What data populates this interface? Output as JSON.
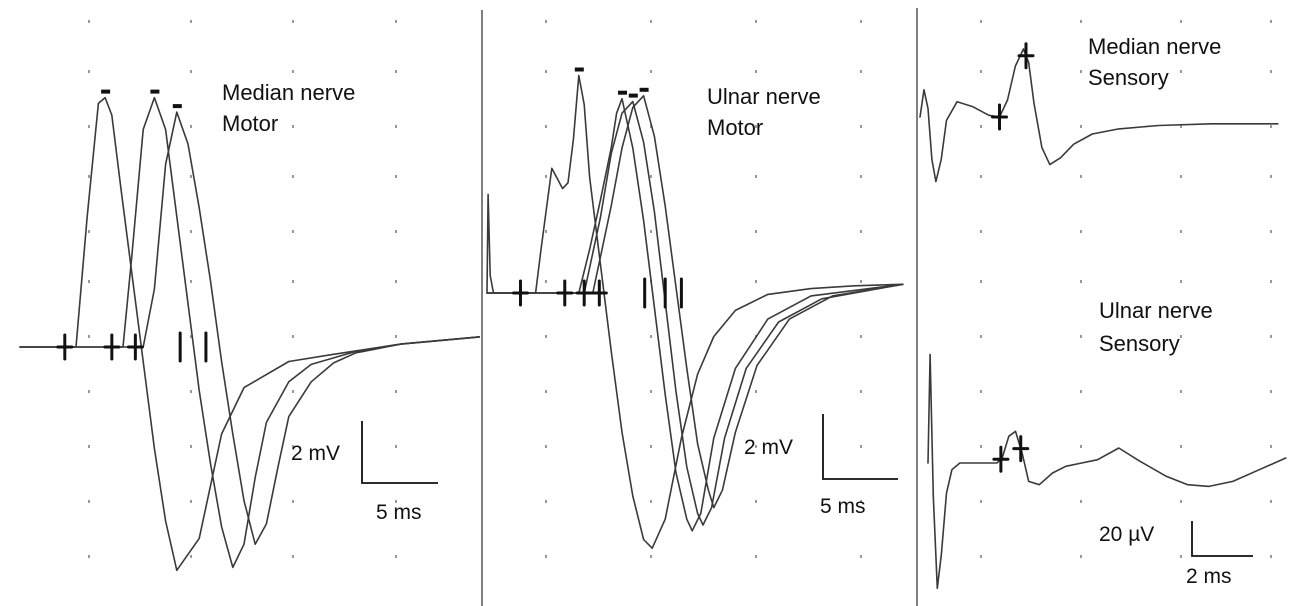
{
  "colors": {
    "trace": "#3a3a3a",
    "marker": "#111111",
    "background": "#ffffff",
    "grid_dots": "#9a9a9a"
  },
  "chart_data": [
    {
      "type": "line",
      "title": "",
      "labels": [
        "Median nerve",
        "Motor"
      ],
      "scale_bar": {
        "amplitude": "2 mV",
        "time": "5 ms"
      },
      "baseline_mV": 0,
      "series": [
        {
          "t": [
            0,
            0.5,
            1.0,
            1.4,
            2.2,
            3.0,
            4.0,
            5.0,
            6.0,
            7.0,
            7.6,
            8.2,
            9.0,
            10.0,
            11.0,
            12.0,
            13.0,
            14.0,
            16.0,
            18.0,
            20.0,
            24.0,
            28.0,
            34.0,
            41.0
          ],
          "v": [
            0,
            0,
            0,
            0,
            0,
            0,
            0,
            0,
            4.5,
            8.4,
            8.6,
            8.0,
            5.5,
            2.5,
            -0.5,
            -3.5,
            -6.0,
            -7.7,
            -6.6,
            -3.0,
            -1.4,
            -0.5,
            -0.25,
            0.1,
            0.35
          ]
        },
        {
          "t": [
            0,
            4.0,
            8.0,
            9.2,
            10.0,
            11.0,
            12.0,
            13.0,
            14.0,
            15.0,
            16.0,
            17.0,
            18.0,
            19.0,
            20.0,
            21.0,
            22.0,
            24.0,
            26.0,
            30.0,
            34.0,
            41.0
          ],
          "v": [
            0,
            0,
            0,
            0,
            3.2,
            7.5,
            8.6,
            7.5,
            4.5,
            1.5,
            -1.5,
            -4.0,
            -6.2,
            -7.6,
            -6.8,
            -4.5,
            -2.6,
            -1.2,
            -0.6,
            -0.15,
            0.1,
            0.35
          ]
        },
        {
          "t": [
            0,
            4.0,
            9.5,
            11.0,
            12.0,
            13.0,
            14.0,
            15.0,
            16.0,
            17.0,
            18.0,
            19.0,
            20.0,
            21.0,
            22.0,
            23.0,
            24.0,
            26.0,
            28.0,
            30.0,
            34.0,
            41.0
          ],
          "v": [
            0,
            0,
            0,
            0,
            2.0,
            6.3,
            8.1,
            7.0,
            4.8,
            2.3,
            -0.5,
            -3.0,
            -5.3,
            -6.8,
            -6.1,
            -4.2,
            -2.4,
            -1.2,
            -0.55,
            -0.2,
            0.1,
            0.35
          ]
        }
      ]
    },
    {
      "type": "line",
      "title": "",
      "labels": [
        "Ulnar nerve",
        "Motor"
      ],
      "scale_bar": {
        "amplitude": "2 mV",
        "time": "5 ms"
      },
      "baseline_mV": 0,
      "series": [
        {
          "t": [
            0,
            0.1,
            0.3,
            0.6,
            1.0,
            3.0,
            4.5,
            5.0,
            6.0,
            7.0,
            7.5,
            8.0,
            8.5,
            9.0,
            9.5,
            10.5,
            11.5,
            12.5,
            13.5,
            14.5,
            15.3,
            16.5,
            18.0,
            19.5,
            21.0,
            23.0,
            26.0,
            30.0,
            34.0,
            38.5
          ],
          "v": [
            0,
            3.4,
            0.6,
            0,
            0,
            0,
            0,
            1.5,
            4.3,
            3.6,
            3.8,
            5.3,
            7.5,
            6.5,
            4.0,
            1.0,
            -2.0,
            -4.8,
            -7.0,
            -8.5,
            -8.8,
            -7.8,
            -5.0,
            -2.8,
            -1.5,
            -0.6,
            -0.05,
            0.15,
            0.25,
            0.3
          ]
        },
        {
          "t": [
            0,
            4.0,
            7.5,
            8.5,
            9.5,
            10.5,
            11.5,
            12.0,
            12.5,
            13.5,
            14.5,
            15.5,
            16.5,
            17.5,
            18.5,
            19.0,
            19.8,
            21.0,
            23.0,
            26.0,
            30.0,
            38.5
          ],
          "v": [
            0,
            0,
            0,
            0,
            1.5,
            3.2,
            5.0,
            6.2,
            6.7,
            5.0,
            2.5,
            -0.5,
            -3.5,
            -6.2,
            -7.8,
            -8.2,
            -7.6,
            -5.0,
            -2.6,
            -0.9,
            -0.1,
            0.3
          ]
        },
        {
          "t": [
            0,
            4.0,
            8.0,
            9.0,
            10.5,
            11.5,
            12.5,
            13.5,
            14.5,
            15.5,
            16.5,
            17.5,
            18.5,
            19.5,
            20.0,
            20.8,
            22.0,
            24.0,
            27.0,
            31.0,
            38.5
          ],
          "v": [
            0,
            0,
            0,
            0,
            2.6,
            4.8,
            6.2,
            6.6,
            5.2,
            2.8,
            -0.3,
            -3.4,
            -6.0,
            -7.6,
            -8.0,
            -7.4,
            -5.0,
            -2.6,
            -1.0,
            -0.2,
            0.3
          ]
        },
        {
          "t": [
            0,
            4.0,
            8.5,
            9.8,
            11.5,
            12.5,
            13.5,
            14.5,
            15.5,
            16.5,
            17.5,
            18.5,
            19.5,
            20.5,
            21.0,
            21.8,
            23.0,
            25.0,
            28.0,
            32.0,
            38.5
          ],
          "v": [
            0,
            0,
            0,
            0,
            3.0,
            5.0,
            6.4,
            6.8,
            5.4,
            3.0,
            0.2,
            -2.6,
            -5.2,
            -6.8,
            -7.4,
            -6.8,
            -4.8,
            -2.5,
            -0.9,
            -0.1,
            0.3
          ]
        }
      ]
    },
    {
      "type": "line",
      "title": "",
      "labels": [
        "Median nerve",
        "Sensory"
      ],
      "scale_bar": {
        "amplitude": "20 µV",
        "time": "2 ms"
      },
      "baseline_uV": 0,
      "series": [
        {
          "t": [
            0,
            0.15,
            0.3,
            0.45,
            0.6,
            0.8,
            1.0,
            1.4,
            2.0,
            2.6,
            3.0,
            3.3,
            3.6,
            3.9,
            4.1,
            4.3,
            4.6,
            4.9,
            5.3,
            5.8,
            6.5,
            7.5,
            9.0,
            11.0,
            13.5
          ],
          "v": [
            0,
            16,
            5,
            -25,
            -38,
            -25,
            -2,
            9,
            6,
            1,
            0,
            10,
            30,
            40,
            32,
            8,
            -18,
            -28,
            -24,
            -16,
            -10,
            -7,
            -5,
            -4,
            -4
          ]
        }
      ]
    },
    {
      "type": "line",
      "title": "",
      "labels": [
        "Ulnar nerve",
        "Sensory"
      ],
      "scale_bar": {
        "amplitude": "20 µV",
        "time": "2 ms"
      },
      "baseline_uV": 0,
      "series": [
        {
          "t": [
            0,
            0.08,
            0.2,
            0.35,
            0.5,
            0.7,
            0.9,
            1.2,
            1.7,
            2.2,
            2.6,
            2.8,
            3.05,
            3.3,
            3.55,
            3.8,
            4.2,
            4.7,
            5.2,
            5.8,
            6.4,
            7.2,
            8.0,
            9.0,
            9.8,
            10.6,
            11.5,
            12.5,
            13.5
          ],
          "v": [
            0,
            65,
            -20,
            -75,
            -55,
            -18,
            -4,
            0,
            0,
            0,
            0,
            3,
            16,
            19,
            6,
            -11,
            -13,
            -6,
            -2,
            0,
            2,
            9,
            1,
            -8,
            -13,
            -14,
            -11,
            -4,
            3
          ]
        }
      ]
    }
  ]
}
